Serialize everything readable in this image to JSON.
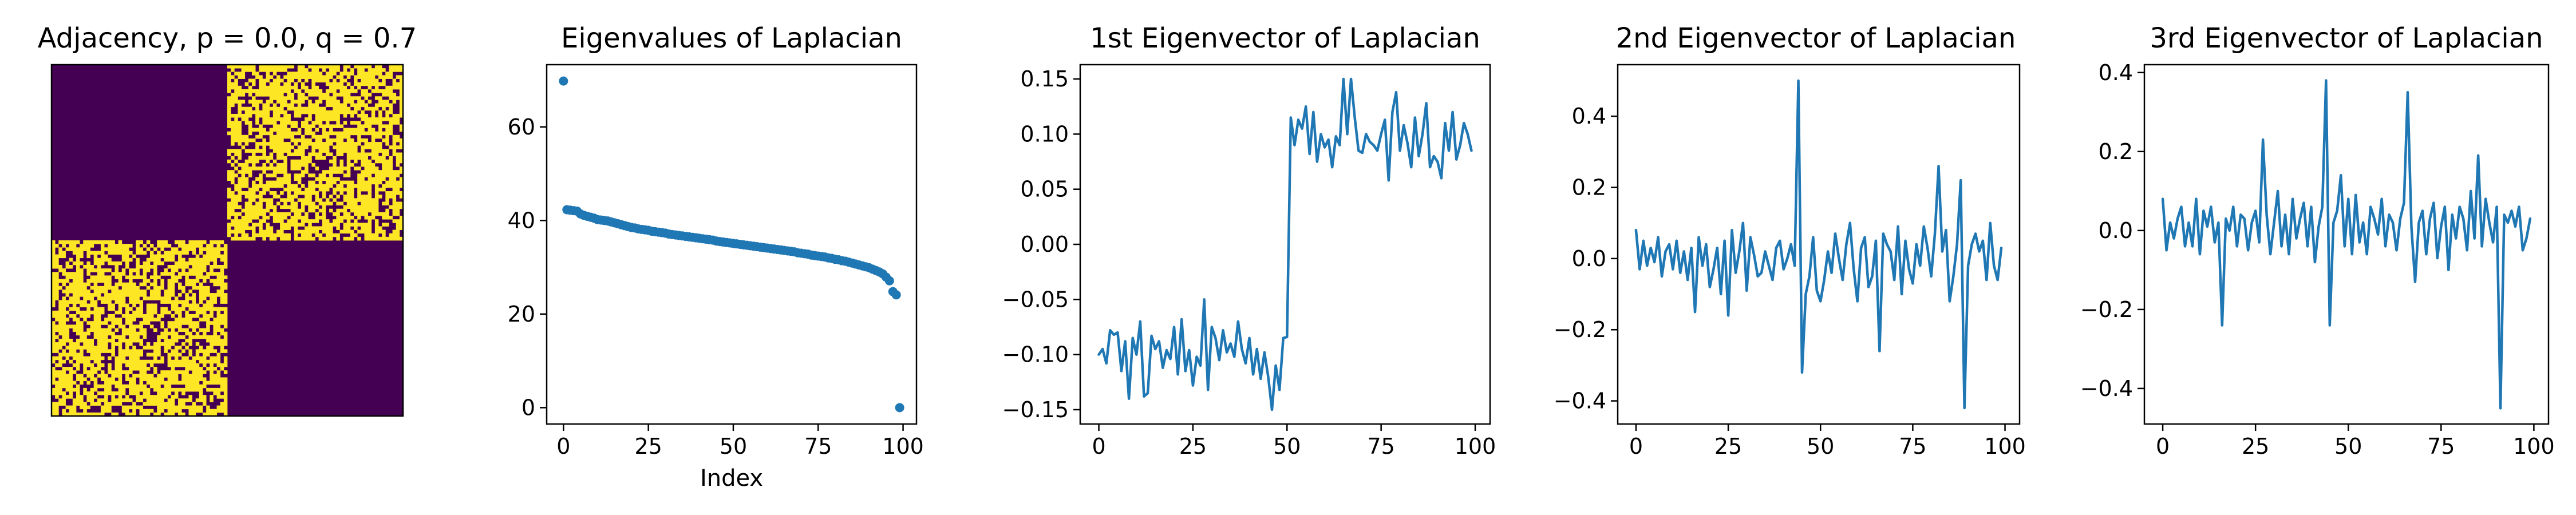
{
  "chart_data": [
    {
      "type": "heatmap",
      "title": "Adjacency, p = 0.0, q = 0.7",
      "size": 100,
      "block_split": 50,
      "within_block_p": 0.0,
      "between_block_q": 0.7,
      "colors": {
        "zero": "#440154",
        "one": "#fde725"
      }
    },
    {
      "type": "scatter",
      "title": "Eigenvalues of Laplacian",
      "xlabel": "Index",
      "ylabel": "",
      "xlim": [
        -4.95,
        103.95
      ],
      "ylim": [
        -3.5,
        73.3
      ],
      "xticks": [
        0,
        25,
        50,
        75,
        100
      ],
      "yticks": [
        0,
        20,
        40,
        60
      ],
      "x": [
        0,
        1,
        2,
        3,
        4,
        5,
        6,
        7,
        8,
        9,
        10,
        11,
        12,
        13,
        14,
        15,
        16,
        17,
        18,
        19,
        20,
        21,
        22,
        23,
        24,
        25,
        26,
        27,
        28,
        29,
        30,
        31,
        32,
        33,
        34,
        35,
        36,
        37,
        38,
        39,
        40,
        41,
        42,
        43,
        44,
        45,
        46,
        47,
        48,
        49,
        50,
        51,
        52,
        53,
        54,
        55,
        56,
        57,
        58,
        59,
        60,
        61,
        62,
        63,
        64,
        65,
        66,
        67,
        68,
        69,
        70,
        71,
        72,
        73,
        74,
        75,
        76,
        77,
        78,
        79,
        80,
        81,
        82,
        83,
        84,
        85,
        86,
        87,
        88,
        89,
        90,
        91,
        92,
        93,
        94,
        95,
        96,
        97,
        98,
        99
      ],
      "y": [
        69.8,
        42.3,
        42.2,
        42.1,
        42.0,
        41.4,
        41.1,
        40.9,
        40.7,
        40.5,
        40.2,
        40.1,
        40.0,
        39.9,
        39.7,
        39.5,
        39.3,
        39.1,
        38.9,
        38.7,
        38.5,
        38.4,
        38.2,
        38.1,
        38.0,
        37.9,
        37.7,
        37.6,
        37.5,
        37.4,
        37.3,
        37.1,
        37.0,
        36.9,
        36.8,
        36.7,
        36.6,
        36.5,
        36.4,
        36.3,
        36.2,
        36.1,
        36.0,
        35.9,
        35.8,
        35.6,
        35.5,
        35.4,
        35.3,
        35.2,
        35.1,
        35.0,
        34.9,
        34.8,
        34.7,
        34.6,
        34.5,
        34.4,
        34.3,
        34.2,
        34.1,
        34.0,
        33.9,
        33.8,
        33.7,
        33.6,
        33.5,
        33.4,
        33.3,
        33.1,
        33.0,
        32.9,
        32.8,
        32.6,
        32.5,
        32.4,
        32.3,
        32.2,
        32.0,
        31.9,
        31.7,
        31.6,
        31.4,
        31.3,
        31.1,
        30.9,
        30.7,
        30.5,
        30.3,
        30.1,
        29.9,
        29.6,
        29.3,
        29.0,
        28.6,
        27.9,
        27.1,
        24.8,
        24.1,
        0.0
      ],
      "color": "#1f77b4"
    },
    {
      "type": "line",
      "title": "1st Eigenvector of Laplacian",
      "xlim": [
        -4.95,
        103.95
      ],
      "ylim": [
        -0.163,
        0.163
      ],
      "xticks": [
        0,
        25,
        50,
        75,
        100
      ],
      "yticks": [
        -0.15,
        -0.1,
        -0.05,
        0.0,
        0.05,
        0.1,
        0.15
      ],
      "ytick_labels": [
        "−0.15",
        "−0.10",
        "−0.05",
        "0.00",
        "0.05",
        "0.10",
        "0.15"
      ],
      "y": [
        -0.1,
        -0.095,
        -0.108,
        -0.078,
        -0.082,
        -0.08,
        -0.115,
        -0.088,
        -0.14,
        -0.085,
        -0.1,
        -0.07,
        -0.138,
        -0.135,
        -0.083,
        -0.095,
        -0.088,
        -0.112,
        -0.096,
        -0.104,
        -0.075,
        -0.118,
        -0.068,
        -0.115,
        -0.096,
        -0.128,
        -0.102,
        -0.11,
        -0.05,
        -0.132,
        -0.075,
        -0.085,
        -0.105,
        -0.078,
        -0.098,
        -0.09,
        -0.102,
        -0.07,
        -0.095,
        -0.108,
        -0.085,
        -0.118,
        -0.095,
        -0.122,
        -0.098,
        -0.12,
        -0.15,
        -0.11,
        -0.132,
        -0.085,
        -0.084,
        0.115,
        0.09,
        0.113,
        0.105,
        0.125,
        0.082,
        0.12,
        0.075,
        0.1,
        0.088,
        0.095,
        0.07,
        0.098,
        0.09,
        0.15,
        0.1,
        0.15,
        0.115,
        0.085,
        0.083,
        0.1,
        0.093,
        0.09,
        0.085,
        0.1,
        0.113,
        0.058,
        0.12,
        0.138,
        0.085,
        0.108,
        0.092,
        0.07,
        0.115,
        0.08,
        0.1,
        0.128,
        0.07,
        0.08,
        0.075,
        0.06,
        0.11,
        0.085,
        0.12,
        0.077,
        0.09,
        0.11,
        0.1,
        0.085
      ],
      "color": "#1f77b4"
    },
    {
      "type": "line",
      "title": "2nd Eigenvector of Laplacian",
      "xlim": [
        -4.95,
        103.95
      ],
      "ylim": [
        -0.465,
        0.545
      ],
      "xticks": [
        0,
        25,
        50,
        75,
        100
      ],
      "yticks": [
        -0.4,
        -0.2,
        0.0,
        0.2,
        0.4
      ],
      "ytick_labels": [
        "−0.4",
        "−0.2",
        "0.0",
        "0.2",
        "0.4"
      ],
      "y": [
        0.08,
        -0.03,
        0.05,
        -0.02,
        0.03,
        -0.01,
        0.06,
        -0.05,
        0.02,
        0.04,
        -0.03,
        0.05,
        -0.04,
        0.02,
        -0.06,
        0.03,
        -0.15,
        0.06,
        -0.02,
        0.04,
        -0.08,
        -0.03,
        0.03,
        -0.1,
        0.05,
        -0.16,
        0.08,
        -0.04,
        0.02,
        0.1,
        -0.09,
        0.06,
        0.01,
        -0.05,
        -0.04,
        0.02,
        -0.02,
        -0.06,
        0.03,
        0.05,
        -0.03,
        0.0,
        0.04,
        -0.02,
        0.5,
        -0.32,
        -0.1,
        -0.05,
        0.06,
        -0.09,
        -0.12,
        -0.06,
        0.02,
        -0.04,
        0.07,
        0.0,
        -0.06,
        0.04,
        0.1,
        -0.03,
        -0.12,
        0.03,
        0.06,
        -0.08,
        -0.05,
        0.05,
        -0.26,
        0.07,
        0.04,
        0.02,
        -0.06,
        0.09,
        -0.1,
        0.05,
        -0.03,
        -0.07,
        0.04,
        -0.02,
        0.09,
        0.03,
        -0.05,
        0.07,
        0.26,
        0.02,
        0.08,
        -0.12,
        -0.05,
        0.04,
        0.22,
        -0.42,
        -0.02,
        0.04,
        0.07,
        0.02,
        0.05,
        -0.06,
        0.1,
        -0.02,
        -0.06,
        0.03
      ],
      "color": "#1f77b4"
    },
    {
      "type": "line",
      "title": "3rd Eigenvector of Laplacian",
      "xlim": [
        -4.95,
        103.95
      ],
      "ylim": [
        -0.49,
        0.42
      ],
      "xticks": [
        0,
        25,
        50,
        75,
        100
      ],
      "yticks": [
        -0.4,
        -0.2,
        0.0,
        0.2,
        0.4
      ],
      "ytick_labels": [
        "−0.4",
        "−0.2",
        "0.0",
        "0.2",
        "0.4"
      ],
      "y": [
        0.08,
        -0.05,
        0.02,
        -0.02,
        0.03,
        0.06,
        -0.04,
        0.02,
        -0.04,
        0.08,
        -0.06,
        0.05,
        0.01,
        0.06,
        -0.03,
        0.02,
        -0.24,
        0.03,
        0.0,
        0.06,
        -0.04,
        0.04,
        0.03,
        -0.05,
        0.02,
        0.05,
        -0.03,
        0.23,
        0.04,
        -0.06,
        0.02,
        0.1,
        -0.04,
        0.04,
        -0.06,
        0.08,
        -0.02,
        0.03,
        0.07,
        -0.04,
        0.06,
        -0.08,
        0.01,
        0.06,
        0.38,
        -0.24,
        0.02,
        0.05,
        0.14,
        -0.04,
        0.08,
        -0.06,
        0.09,
        -0.03,
        0.02,
        -0.06,
        0.06,
        0.03,
        -0.01,
        0.08,
        -0.04,
        0.04,
        0.02,
        -0.05,
        0.03,
        0.07,
        0.35,
        0.01,
        -0.13,
        0.02,
        0.05,
        -0.06,
        0.03,
        0.07,
        -0.07,
        0.01,
        0.06,
        -0.1,
        0.04,
        -0.02,
        0.06,
        0.03,
        -0.05,
        0.1,
        -0.02,
        0.19,
        -0.04,
        0.08,
        0.02,
        -0.03,
        0.06,
        -0.45,
        0.04,
        0.02,
        0.05,
        0.01,
        0.06,
        -0.05,
        -0.02,
        0.03
      ],
      "color": "#1f77b4"
    }
  ]
}
